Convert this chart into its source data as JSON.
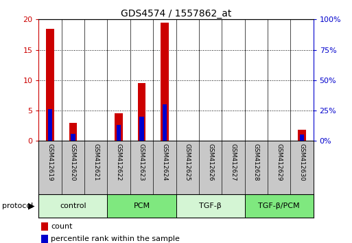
{
  "title": "GDS4574 / 1557862_at",
  "samples": [
    "GSM412619",
    "GSM412620",
    "GSM412621",
    "GSM412622",
    "GSM412623",
    "GSM412624",
    "GSM412625",
    "GSM412626",
    "GSM412627",
    "GSM412628",
    "GSM412629",
    "GSM412630"
  ],
  "count_values": [
    18.5,
    3.0,
    0.0,
    4.5,
    9.5,
    19.5,
    0.0,
    0.0,
    0.0,
    0.0,
    0.0,
    1.8
  ],
  "percentile_values": [
    26,
    6,
    0,
    13,
    20,
    30,
    0,
    0,
    0,
    0,
    0,
    5
  ],
  "ylim_left": [
    0,
    20
  ],
  "ylim_right": [
    0,
    100
  ],
  "yticks_left": [
    0,
    5,
    10,
    15,
    20
  ],
  "yticks_right": [
    0,
    25,
    50,
    75,
    100
  ],
  "ytick_labels_left": [
    "0",
    "5",
    "10",
    "15",
    "20"
  ],
  "ytick_labels_right": [
    "0%",
    "25%",
    "50%",
    "75%",
    "100%"
  ],
  "groups": [
    {
      "label": "control",
      "start": 0,
      "end": 3,
      "color": "#d4f5d4"
    },
    {
      "label": "PCM",
      "start": 3,
      "end": 6,
      "color": "#7fe87f"
    },
    {
      "label": "TGF-β",
      "start": 6,
      "end": 9,
      "color": "#d4f5d4"
    },
    {
      "label": "TGF-β/PCM",
      "start": 9,
      "end": 12,
      "color": "#7fe87f"
    }
  ],
  "bar_width": 0.35,
  "count_color": "#cc0000",
  "percentile_color": "#0000cc",
  "tick_label_color_left": "#cc0000",
  "tick_label_color_right": "#0000cc",
  "bg_color": "#ffffff",
  "bar_bg_color": "#c8c8c8",
  "legend_count_label": "count",
  "legend_percentile_label": "percentile rank within the sample"
}
